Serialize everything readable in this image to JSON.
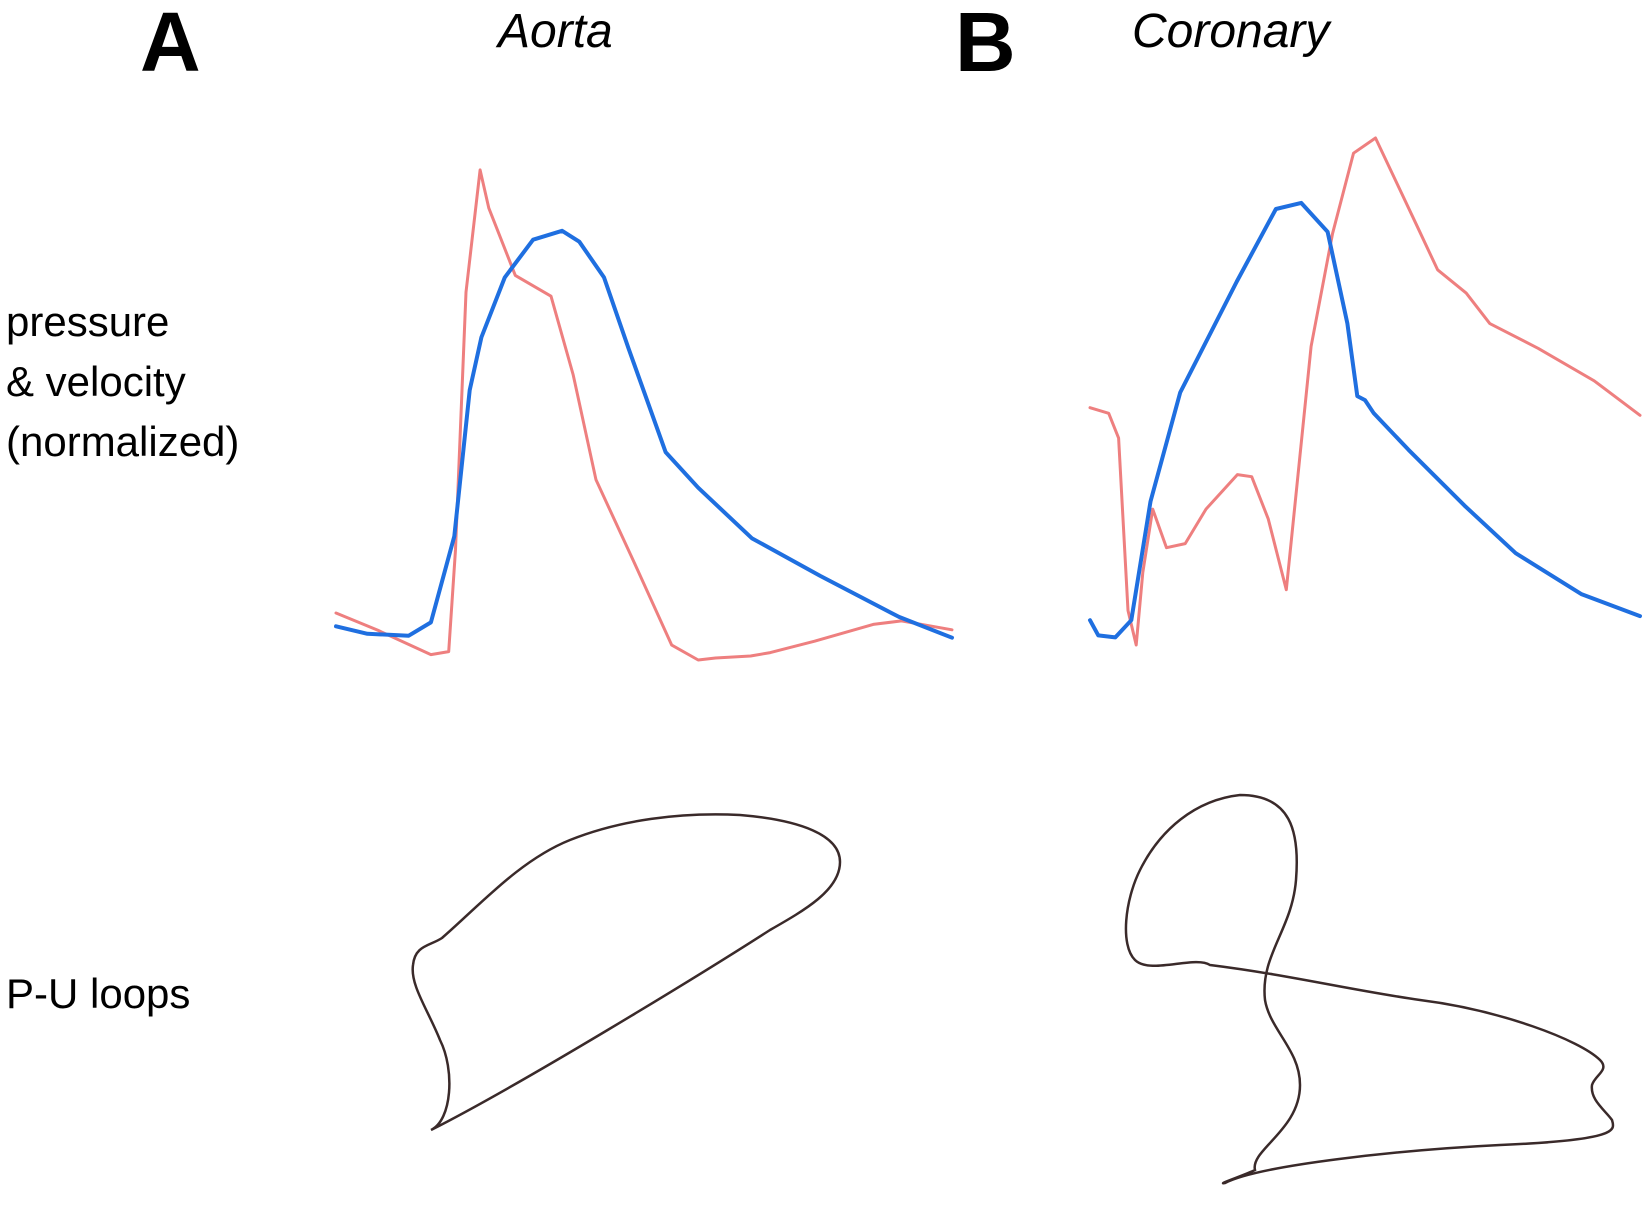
{
  "panels": [
    {
      "letter": "A",
      "title": "Aorta"
    },
    {
      "letter": "B",
      "title": "Coronary"
    }
  ],
  "row_labels": {
    "waveforms": "pressure\n& velocity\n(normalized)",
    "loops": "P-U loops"
  },
  "colors": {
    "pressure": "#ee7f7f",
    "velocity": "#1f6fe0",
    "loop": "#3a2a2a"
  },
  "chart_data": [
    {
      "type": "line",
      "panel": "A",
      "title": "Aorta",
      "xlim": [
        0,
        1
      ],
      "ylim": [
        0,
        1
      ],
      "grid": false,
      "series": [
        {
          "role": "pressure",
          "color": "#ee7f7f",
          "x": [
            0.0,
            0.068,
            0.154,
            0.183,
            0.194,
            0.211,
            0.234,
            0.248,
            0.291,
            0.349,
            0.385,
            0.422,
            0.483,
            0.545,
            0.588,
            0.616,
            0.673,
            0.705,
            0.777,
            0.872,
            0.918,
            1.0
          ],
          "y": [
            0.095,
            0.06,
            0.011,
            0.017,
            0.223,
            0.743,
            0.99,
            0.913,
            0.777,
            0.735,
            0.576,
            0.364,
            0.2,
            0.03,
            0.0,
            0.004,
            0.008,
            0.015,
            0.038,
            0.072,
            0.079,
            0.061
          ]
        },
        {
          "role": "velocity",
          "color": "#1f6fe0",
          "x": [
            0.0,
            0.051,
            0.118,
            0.154,
            0.192,
            0.217,
            0.236,
            0.274,
            0.32,
            0.367,
            0.395,
            0.435,
            0.475,
            0.535,
            0.588,
            0.675,
            0.786,
            0.914,
            1.0
          ],
          "y": [
            0.068,
            0.053,
            0.049,
            0.076,
            0.25,
            0.545,
            0.652,
            0.773,
            0.849,
            0.867,
            0.845,
            0.773,
            0.629,
            0.42,
            0.348,
            0.246,
            0.17,
            0.087,
            0.045
          ]
        }
      ]
    },
    {
      "type": "line",
      "panel": "B",
      "title": "Coronary",
      "xlim": [
        0,
        1
      ],
      "ylim": [
        0,
        1
      ],
      "grid": false,
      "series": [
        {
          "role": "pressure",
          "color": "#ee7f7f",
          "x": [
            0.0,
            0.034,
            0.052,
            0.069,
            0.084,
            0.096,
            0.114,
            0.139,
            0.173,
            0.211,
            0.268,
            0.294,
            0.324,
            0.357,
            0.402,
            0.441,
            0.479,
            0.519,
            0.593,
            0.632,
            0.684,
            0.727,
            0.815,
            0.917,
            1.0
          ],
          "y": [
            0.468,
            0.457,
            0.408,
            0.068,
            0.0,
            0.143,
            0.268,
            0.192,
            0.2,
            0.268,
            0.336,
            0.332,
            0.249,
            0.109,
            0.589,
            0.811,
            0.97,
            1.0,
            0.83,
            0.74,
            0.694,
            0.634,
            0.585,
            0.521,
            0.453
          ]
        },
        {
          "role": "velocity",
          "color": "#1f6fe0",
          "x": [
            0.0,
            0.015,
            0.046,
            0.075,
            0.11,
            0.164,
            0.267,
            0.338,
            0.384,
            0.432,
            0.468,
            0.486,
            0.5,
            0.516,
            0.579,
            0.681,
            0.774,
            0.894,
            1.0
          ],
          "y": [
            0.049,
            0.019,
            0.015,
            0.049,
            0.283,
            0.498,
            0.717,
            0.86,
            0.872,
            0.815,
            0.634,
            0.491,
            0.483,
            0.457,
            0.385,
            0.275,
            0.181,
            0.1,
            0.057
          ]
        }
      ]
    }
  ]
}
